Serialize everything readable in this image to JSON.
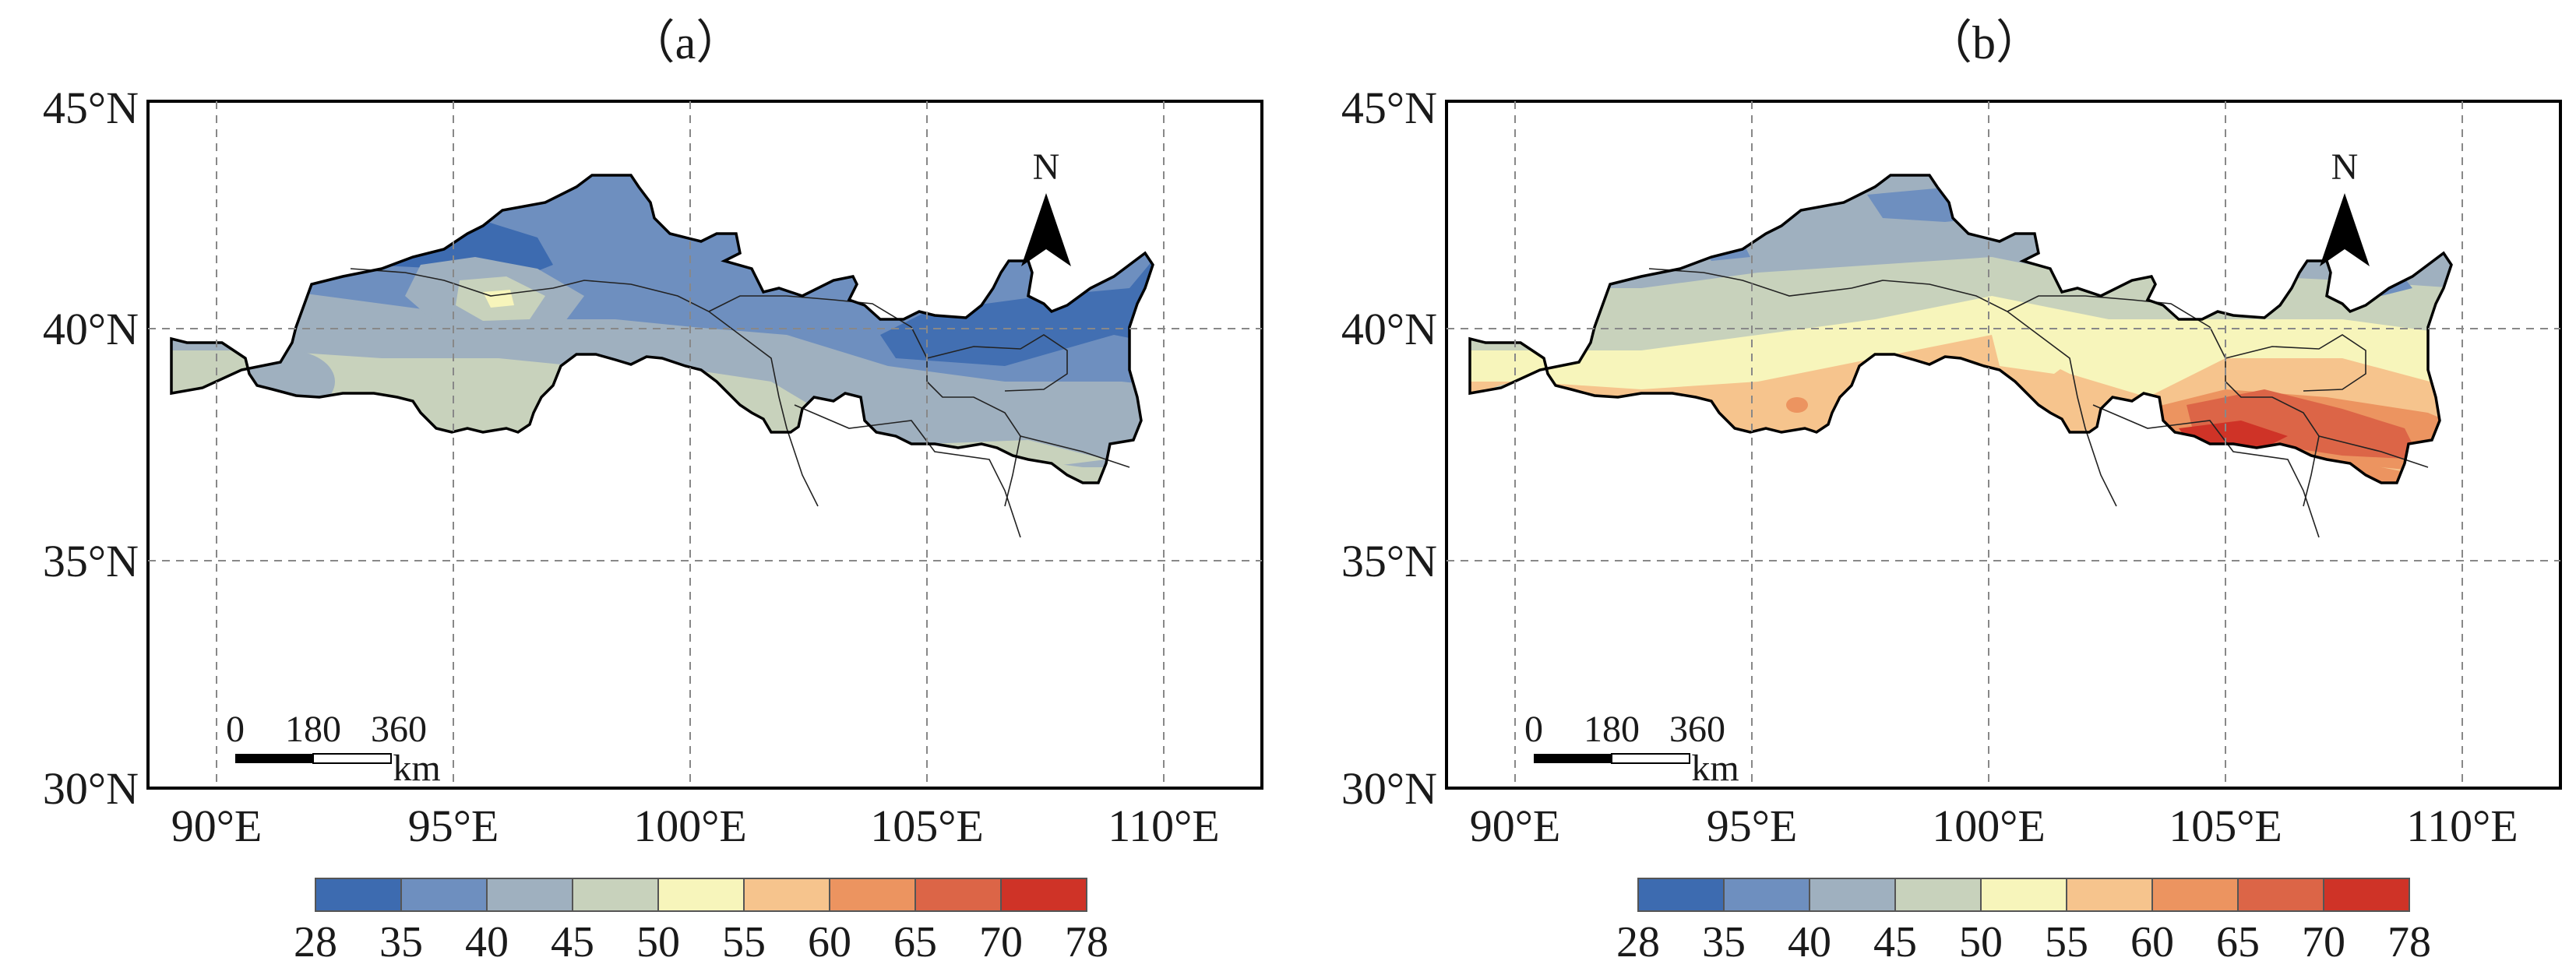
{
  "panels": [
    {
      "label": "（a）",
      "x_ticks": [
        "90°E",
        "95°E",
        "100°E",
        "105°E",
        "110°E"
      ],
      "y_ticks": [
        "45°N",
        "40°N",
        "35°N",
        "30°N"
      ],
      "north_label": "N",
      "scale_ticks": [
        "0",
        "180",
        "360"
      ],
      "scale_unit": "km",
      "colorbar_ticks": [
        "28",
        "35",
        "40",
        "45",
        "50",
        "55",
        "60",
        "65",
        "70",
        "78"
      ]
    },
    {
      "label": "（b）",
      "x_ticks": [
        "90°E",
        "95°E",
        "100°E",
        "105°E",
        "110°E"
      ],
      "y_ticks": [
        "45°N",
        "40°N",
        "35°N",
        "30°N"
      ],
      "north_label": "N",
      "scale_ticks": [
        "0",
        "180",
        "360"
      ],
      "scale_unit": "km",
      "colorbar_ticks": [
        "28",
        "35",
        "40",
        "45",
        "50",
        "55",
        "60",
        "65",
        "70",
        "78"
      ]
    }
  ],
  "colorbar_colors": [
    "#3d6bb0",
    "#6e8fbf",
    "#9fb0bf",
    "#c8d2bc",
    "#f7f5bb",
    "#f6c48d",
    "#ec9460",
    "#dc6547",
    "#cf3327"
  ],
  "map_extent": {
    "lon": [
      88.5,
      112
    ],
    "lat": [
      30,
      45
    ]
  }
}
